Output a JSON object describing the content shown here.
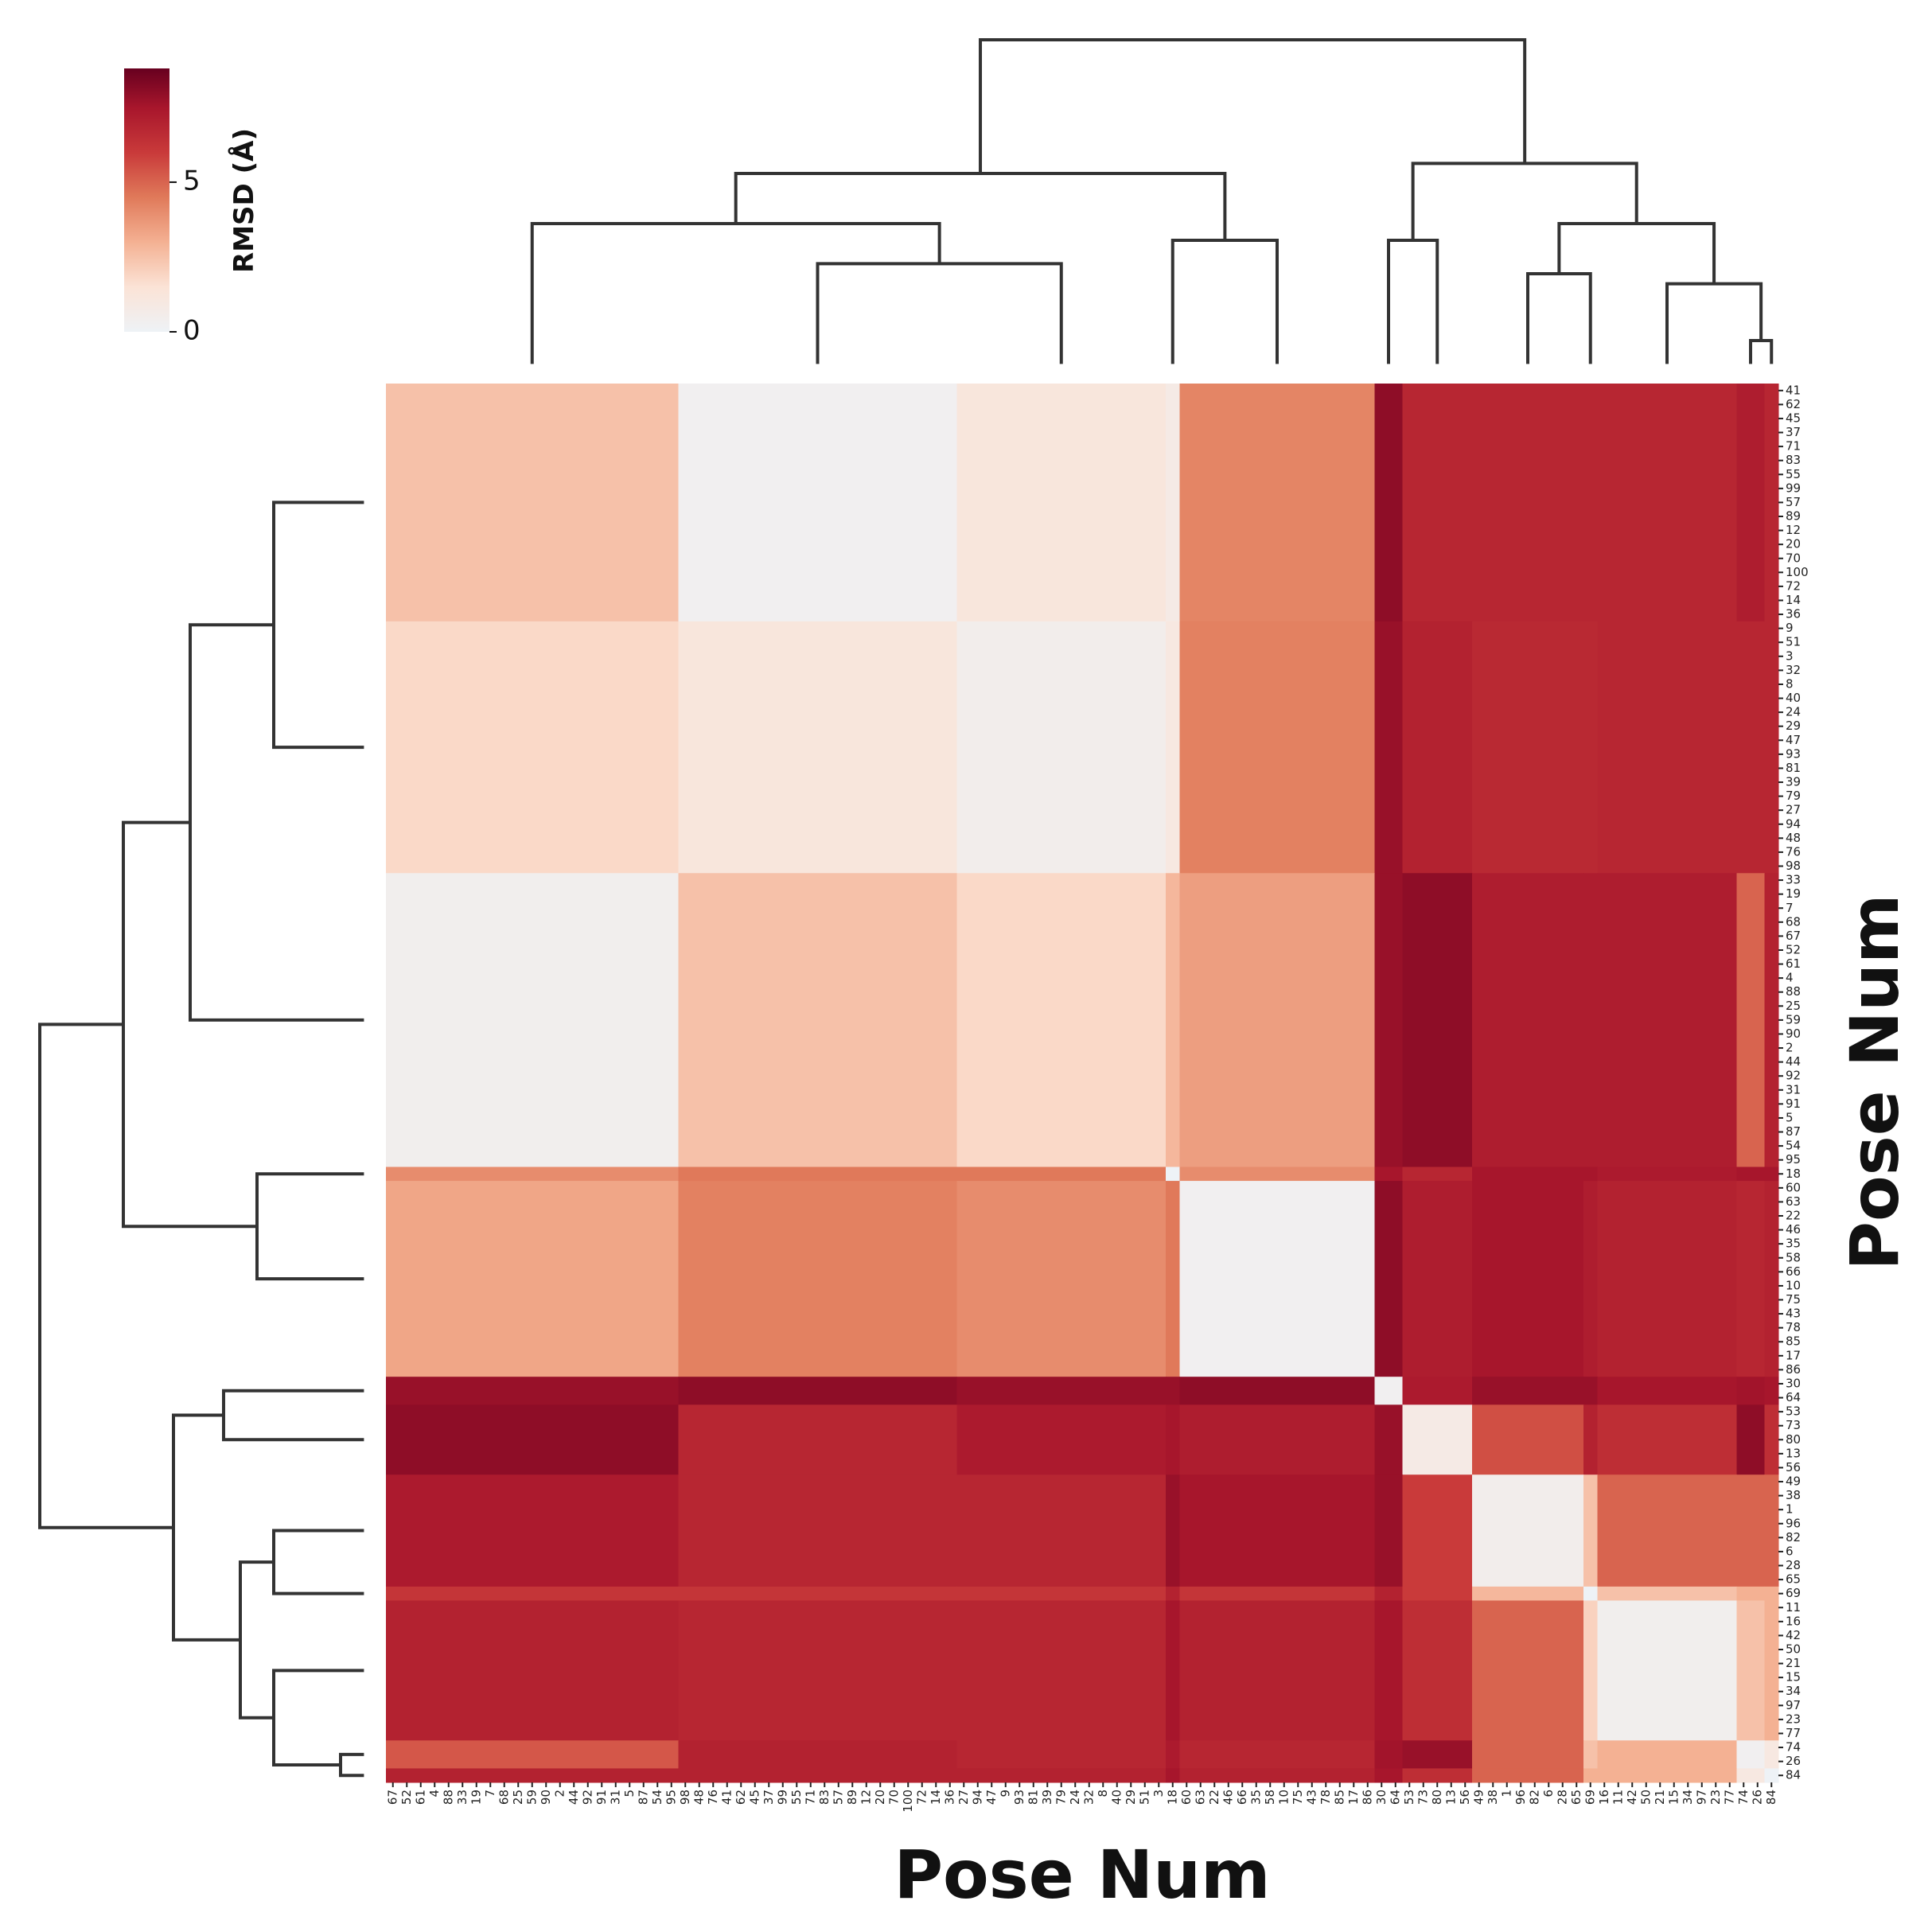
{
  "chart_data": {
    "type": "heatmap",
    "xlabel": "Pose Num",
    "ylabel": "Pose Num",
    "colorbar_label": "RMSD (Å)",
    "clim": [
      0,
      8.8
    ],
    "colorbar_ticks": [
      0,
      5
    ],
    "row_clusters": [
      [
        41,
        62,
        45,
        37,
        71,
        83,
        55,
        99,
        57,
        89,
        12,
        20,
        70,
        100,
        72,
        14,
        36
      ],
      [
        9,
        51,
        3,
        32,
        8,
        40,
        24,
        29,
        47,
        93,
        81,
        39,
        79,
        27,
        94,
        48,
        76,
        98
      ],
      [
        33,
        19,
        7,
        68,
        67,
        52,
        61,
        4,
        88,
        25,
        59,
        90,
        2,
        44,
        92,
        31,
        91,
        5,
        87,
        54,
        95
      ],
      [
        18
      ],
      [
        60,
        63,
        22,
        46,
        35,
        58,
        66,
        10,
        75,
        43,
        78,
        85,
        17,
        86
      ],
      [
        30,
        64
      ],
      [
        53,
        73,
        80,
        13,
        56
      ],
      [
        49,
        38,
        1,
        96,
        82,
        6,
        28,
        65
      ],
      [
        69
      ],
      [
        11,
        16,
        42,
        50,
        21,
        15,
        34,
        97,
        23,
        77
      ],
      [
        74,
        26
      ],
      [
        84
      ]
    ],
    "col_clusters": [
      [
        67,
        52,
        61,
        4,
        88,
        33,
        19,
        7,
        68,
        25,
        59,
        90,
        2,
        44,
        92,
        91,
        31,
        5,
        87,
        54,
        95
      ],
      [
        98,
        48,
        76,
        41,
        62,
        45,
        37,
        99,
        55,
        71,
        83,
        57,
        89,
        12,
        20,
        70,
        100,
        72,
        14,
        36
      ],
      [
        27,
        94,
        47,
        9,
        93,
        81,
        39,
        79,
        24,
        32,
        8,
        40,
        29,
        51,
        3
      ],
      [
        18
      ],
      [
        60,
        63,
        22,
        46,
        66,
        35,
        58,
        10,
        75,
        43,
        78,
        85,
        17,
        86
      ],
      [
        30,
        64
      ],
      [
        53,
        73,
        80,
        13,
        56
      ],
      [
        49,
        38,
        1,
        96,
        82,
        6,
        28,
        65
      ],
      [
        69
      ],
      [
        16,
        11,
        42,
        50,
        21,
        15,
        34,
        97,
        23,
        77
      ],
      [
        74,
        26
      ],
      [
        84
      ]
    ],
    "values": [
      [
        2.5,
        0.3,
        1.2,
        0.8,
        4.2,
        8.0,
        6.8,
        6.8,
        6.8,
        6.8,
        7.2,
        6.8
      ],
      [
        1.8,
        1.2,
        0.5,
        1.0,
        4.3,
        7.8,
        7.0,
        6.7,
        6.7,
        6.8,
        6.8,
        6.8
      ],
      [
        0.4,
        2.5,
        1.8,
        2.8,
        3.5,
        7.8,
        8.0,
        7.2,
        7.2,
        7.2,
        5.0,
        7.0
      ],
      [
        4.0,
        4.5,
        4.5,
        0.0,
        4.0,
        7.5,
        6.8,
        7.5,
        7.5,
        7.3,
        7.5,
        7.5
      ],
      [
        3.3,
        4.3,
        4.0,
        4.5,
        0.3,
        8.0,
        7.2,
        7.5,
        7.2,
        7.0,
        6.8,
        7.0
      ],
      [
        7.8,
        8.0,
        7.8,
        7.8,
        8.0,
        0.3,
        7.3,
        7.8,
        7.8,
        7.5,
        7.6,
        7.5
      ],
      [
        8.0,
        6.8,
        7.3,
        7.5,
        7.2,
        7.8,
        0.8,
        5.5,
        7.0,
        6.5,
        8.0,
        6.5
      ],
      [
        7.3,
        6.8,
        6.8,
        7.8,
        7.5,
        7.8,
        6.0,
        0.5,
        2.5,
        5.0,
        5.0,
        5.0
      ],
      [
        6.2,
        6.2,
        6.2,
        7.0,
        6.2,
        7.0,
        6.0,
        2.8,
        0.0,
        2.5,
        3.0,
        3.0
      ],
      [
        7.0,
        6.8,
        6.8,
        7.5,
        7.0,
        7.5,
        6.5,
        5.0,
        2.0,
        0.4,
        2.5,
        3.0
      ],
      [
        5.3,
        7.0,
        6.8,
        7.3,
        6.8,
        7.6,
        7.8,
        5.0,
        2.5,
        3.0,
        0.3,
        1.0
      ],
      [
        7.0,
        7.0,
        7.0,
        7.5,
        7.0,
        7.5,
        6.5,
        5.0,
        3.0,
        3.0,
        1.0,
        0.0
      ]
    ]
  }
}
